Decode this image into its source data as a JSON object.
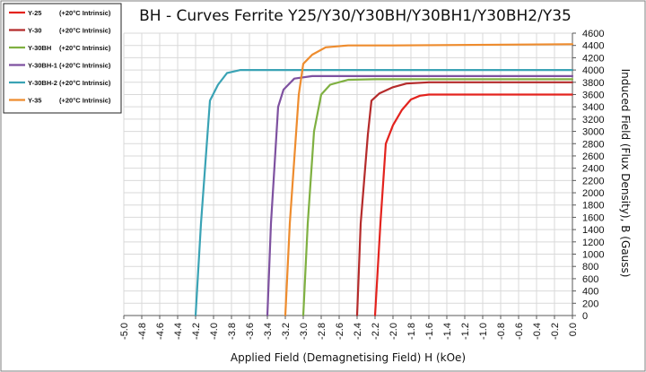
{
  "chart_data": {
    "type": "line",
    "title": "BH - Curves Ferrite Y25/Y30/Y30BH/Y30BH1/Y30BH2/Y35",
    "xlabel": "Applied Field (Demagnetising Field) H (kOe)",
    "ylabel": "Induced Field (Flux Density), B (Gauss)",
    "xlim": [
      -5.0,
      0.0
    ],
    "ylim": [
      0,
      4600
    ],
    "x_ticks": [
      "-5.0",
      "-4.8",
      "-4.6",
      "-4.4",
      "-4.2",
      "-4.0",
      "-3.8",
      "-3.6",
      "-3.4",
      "-3.2",
      "-3.0",
      "-2.8",
      "-2.6",
      "-2.4",
      "-2.2",
      "-2.0",
      "-1.8",
      "-1.6",
      "-1.4",
      "-1.2",
      "-1.0",
      "-0.8",
      "-0.6",
      "-0.4",
      "-0.2",
      "0.0"
    ],
    "y_ticks": [
      "0",
      "200",
      "400",
      "600",
      "800",
      "1000",
      "1200",
      "1400",
      "1600",
      "1800",
      "2000",
      "2200",
      "2400",
      "2600",
      "2800",
      "3000",
      "3200",
      "3400",
      "3600",
      "3800",
      "4000",
      "4200",
      "4400",
      "4600"
    ],
    "grid": true,
    "legend_position": "top-left",
    "series": [
      {
        "name": "Y-25",
        "note": "(+20°C Intrinsic)",
        "color": "#e3231e",
        "points": [
          [
            -2.2,
            0
          ],
          [
            -2.14,
            1500
          ],
          [
            -2.08,
            2800
          ],
          [
            -2.0,
            3100
          ],
          [
            -1.9,
            3350
          ],
          [
            -1.8,
            3520
          ],
          [
            -1.7,
            3580
          ],
          [
            -1.6,
            3600
          ],
          [
            -1.0,
            3600
          ],
          [
            0.0,
            3600
          ]
        ]
      },
      {
        "name": "Y-30",
        "note": "(+20°C Intrinsic)",
        "color": "#b52b2b",
        "points": [
          [
            -2.4,
            0
          ],
          [
            -2.36,
            1500
          ],
          [
            -2.28,
            2950
          ],
          [
            -2.24,
            3500
          ],
          [
            -2.15,
            3620
          ],
          [
            -2.0,
            3720
          ],
          [
            -1.85,
            3780
          ],
          [
            -1.6,
            3800
          ],
          [
            0.0,
            3800
          ]
        ]
      },
      {
        "name": "Y-30BH",
        "note": "(+20°C Intrinsic)",
        "color": "#7fb041",
        "points": [
          [
            -3.0,
            0
          ],
          [
            -2.95,
            1500
          ],
          [
            -2.88,
            3000
          ],
          [
            -2.8,
            3600
          ],
          [
            -2.7,
            3760
          ],
          [
            -2.5,
            3840
          ],
          [
            -2.2,
            3850
          ],
          [
            0.0,
            3850
          ]
        ]
      },
      {
        "name": "Y-30BH-1",
        "note": "(+20°C Intrinsic)",
        "color": "#7e51a0",
        "points": [
          [
            -3.4,
            0
          ],
          [
            -3.36,
            1500
          ],
          [
            -3.28,
            3400
          ],
          [
            -3.22,
            3680
          ],
          [
            -3.1,
            3860
          ],
          [
            -2.9,
            3900
          ],
          [
            0.0,
            3900
          ]
        ]
      },
      {
        "name": "Y-30BH-2",
        "note": "(+20°C Intrinsic)",
        "color": "#3aa3b5",
        "points": [
          [
            -4.2,
            0
          ],
          [
            -4.14,
            1500
          ],
          [
            -4.04,
            3500
          ],
          [
            -3.95,
            3760
          ],
          [
            -3.85,
            3950
          ],
          [
            -3.7,
            4000
          ],
          [
            0.0,
            4000
          ]
        ]
      },
      {
        "name": "Y-35",
        "note": "(+20°C Intrinsic)",
        "color": "#ee8c2e",
        "points": [
          [
            -3.2,
            0
          ],
          [
            -3.15,
            1500
          ],
          [
            -3.05,
            3600
          ],
          [
            -3.0,
            4100
          ],
          [
            -2.9,
            4250
          ],
          [
            -2.75,
            4370
          ],
          [
            -2.5,
            4400
          ],
          [
            -2.0,
            4400
          ],
          [
            0.0,
            4420
          ]
        ]
      }
    ]
  }
}
